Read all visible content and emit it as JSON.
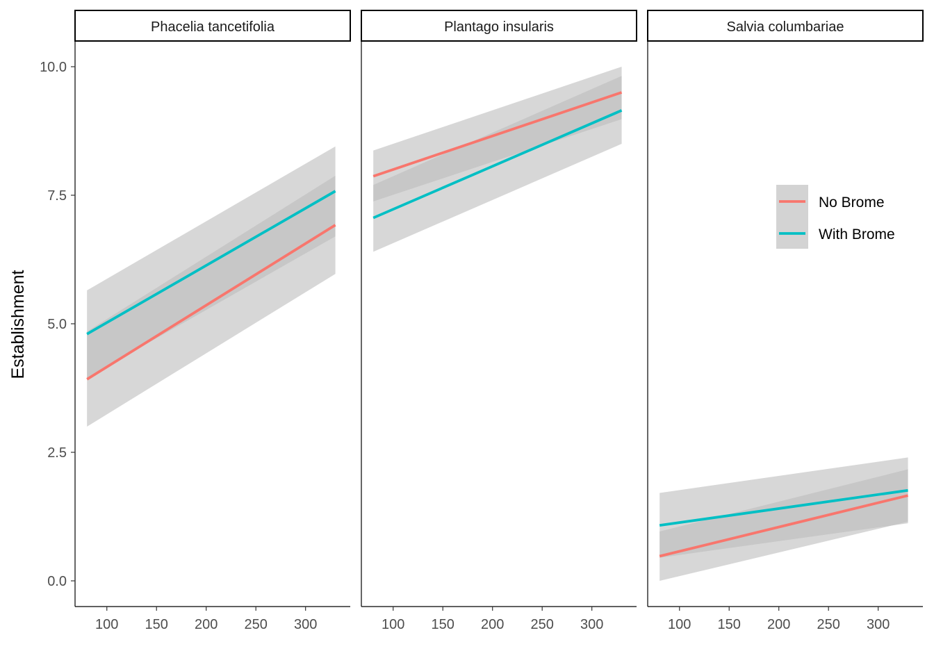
{
  "chart_data": {
    "type": "line",
    "ylabel": "Establishment",
    "xlabel": "",
    "xlim": [
      68,
      345
    ],
    "ylim": [
      -0.5,
      10.5
    ],
    "x_ticks": [
      100,
      150,
      200,
      250,
      300
    ],
    "y_ticks": [
      0.0,
      2.5,
      5.0,
      7.5,
      10.0
    ],
    "y_tick_labels": [
      "0.0",
      "2.5",
      "5.0",
      "7.5",
      "10.0"
    ],
    "legend_position": "right-inside-third-panel",
    "series_colors": {
      "No Brome": "#F8766D",
      "With Brome": "#00BFC4"
    },
    "band_color": "#bdbdbd",
    "legend": [
      {
        "name": "No Brome",
        "color": "#F8766D"
      },
      {
        "name": "With Brome",
        "color": "#00BFC4"
      }
    ],
    "panels": [
      {
        "title": "Phacelia tancetifolia",
        "series": [
          {
            "name": "No Brome",
            "x": [
              80,
              330
            ],
            "y": [
              3.92,
              6.92
            ],
            "ci_lower": [
              3.0,
              5.97
            ],
            "ci_upper": [
              4.85,
              7.88
            ]
          },
          {
            "name": "With Brome",
            "x": [
              80,
              330
            ],
            "y": [
              4.8,
              7.58
            ],
            "ci_lower": [
              3.95,
              6.7
            ],
            "ci_upper": [
              5.65,
              8.45
            ]
          }
        ]
      },
      {
        "title": "Plantago insularis",
        "series": [
          {
            "name": "No Brome",
            "x": [
              80,
              330
            ],
            "y": [
              7.87,
              9.5
            ],
            "ci_lower": [
              7.38,
              8.98
            ],
            "ci_upper": [
              8.37,
              10.0
            ]
          },
          {
            "name": "With Brome",
            "x": [
              80,
              330
            ],
            "y": [
              7.06,
              9.15
            ],
            "ci_lower": [
              6.4,
              8.5
            ],
            "ci_upper": [
              7.7,
              9.82
            ]
          }
        ]
      },
      {
        "title": "Salvia columbariae",
        "series": [
          {
            "name": "No Brome",
            "x": [
              80,
              330
            ],
            "y": [
              0.48,
              1.66
            ],
            "ci_lower": [
              0.0,
              1.15
            ],
            "ci_upper": [
              0.96,
              2.17
            ]
          },
          {
            "name": "With Brome",
            "x": [
              80,
              330
            ],
            "y": [
              1.08,
              1.76
            ],
            "ci_lower": [
              0.45,
              1.12
            ],
            "ci_upper": [
              1.71,
              2.4
            ]
          }
        ]
      }
    ]
  }
}
